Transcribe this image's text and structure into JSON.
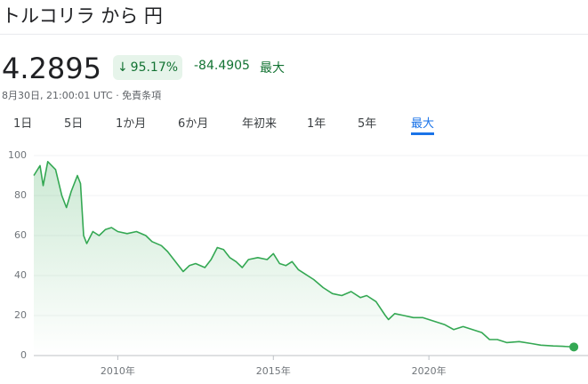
{
  "header": {
    "title": "トルコリラ から 円",
    "price": "4.2895",
    "change_percent": "95.17%",
    "change": "-84.4905",
    "period": "最大",
    "timestamp": "8月30日, 21:00:01 UTC · 免責条項"
  },
  "tabs": [
    "1日",
    "5日",
    "1か月",
    "6か月",
    "年初来",
    "1年",
    "5年",
    "最大"
  ],
  "selected_tab": 7,
  "chart_data": {
    "type": "line",
    "color": "#34a853",
    "grid": true,
    "x": [
      2007.3,
      2007.5,
      2007.6,
      2007.75,
      2008.0,
      2008.2,
      2008.35,
      2008.5,
      2008.7,
      2008.8,
      2008.9,
      2009.0,
      2009.2,
      2009.4,
      2009.6,
      2009.8,
      2010.0,
      2010.3,
      2010.6,
      2010.9,
      2011.1,
      2011.4,
      2011.6,
      2011.9,
      2012.1,
      2012.3,
      2012.5,
      2012.8,
      2013.0,
      2013.2,
      2013.4,
      2013.6,
      2013.8,
      2014.0,
      2014.2,
      2014.5,
      2014.8,
      2015.0,
      2015.2,
      2015.4,
      2015.6,
      2015.8,
      2016.0,
      2016.3,
      2016.6,
      2016.9,
      2017.2,
      2017.5,
      2017.8,
      2018.0,
      2018.3,
      2018.6,
      2018.7,
      2018.9,
      2019.2,
      2019.5,
      2019.8,
      2020.2,
      2020.5,
      2020.8,
      2021.1,
      2021.4,
      2021.7,
      2021.95,
      2022.2,
      2022.5,
      2022.9,
      2023.3,
      2023.6,
      2024.0,
      2024.3,
      2024.66
    ],
    "values": [
      90,
      95,
      85,
      97,
      93,
      80,
      74,
      82,
      90,
      86,
      60,
      56,
      62,
      60,
      63,
      64,
      62,
      61,
      62,
      60,
      57,
      55,
      52,
      46,
      42,
      45,
      46,
      44,
      48,
      54,
      53,
      49,
      47,
      44,
      48,
      49,
      48,
      51,
      46,
      45,
      47,
      43,
      41,
      38,
      34,
      31,
      30,
      32,
      29,
      30,
      27,
      20,
      18,
      21,
      20,
      19,
      19,
      17,
      15.5,
      13,
      14.5,
      13,
      11.5,
      8,
      8,
      6.5,
      7,
      6,
      5.2,
      4.8,
      4.6,
      4.3
    ],
    "xlim": [
      2007.3,
      2024.8
    ],
    "ylim": [
      0,
      100
    ],
    "xticks": [
      {
        "value": 2010,
        "label": "2010年"
      },
      {
        "value": 2015,
        "label": "2015年"
      },
      {
        "value": 2020,
        "label": "2020年"
      }
    ],
    "yticks": [
      0,
      20,
      40,
      60,
      80,
      100
    ]
  }
}
